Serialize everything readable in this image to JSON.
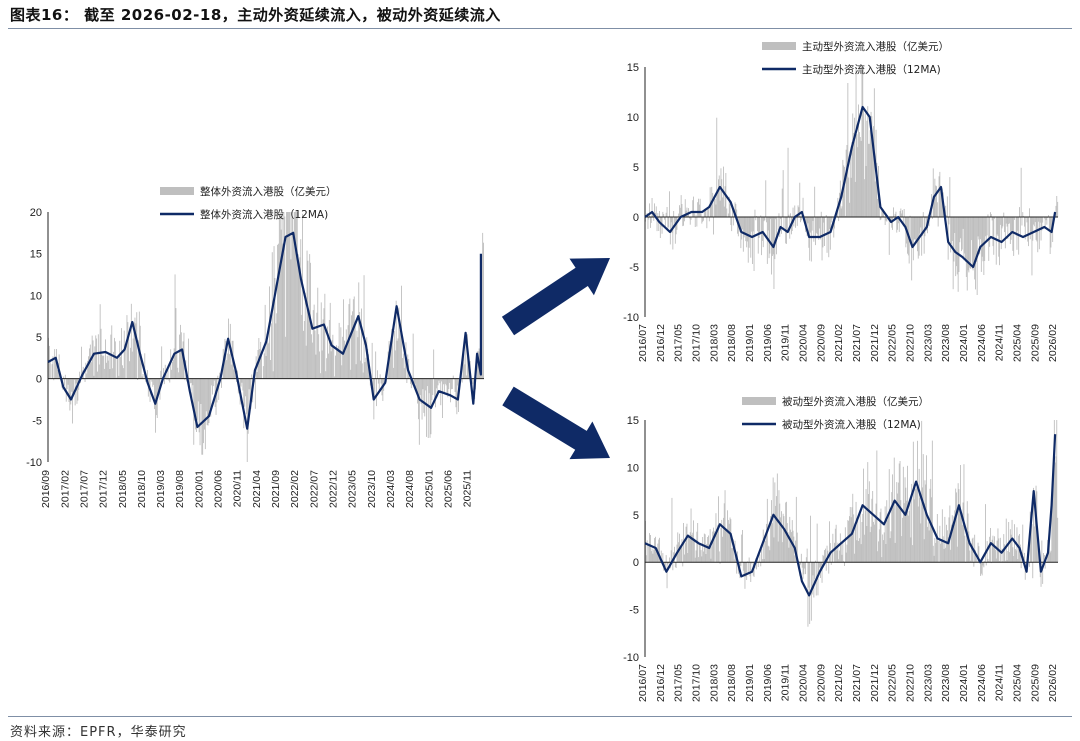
{
  "figure": {
    "title": "图表16： 截至 2026-02-18，主动外资延续流入，被动外资延续流入",
    "source": "资料来源：EPFR，华泰研究"
  },
  "colors": {
    "bar": "#bfbfbf",
    "line": "#0f2a66",
    "arrow": "#0f2a66",
    "zero": "#222222"
  },
  "chart_data": [
    {
      "type": "bar+line",
      "name": "total",
      "legend": [
        "整体外资流入港股（亿美元）",
        "整体外资流入港股（12MA)"
      ],
      "ylim": [
        -10,
        20
      ],
      "yticks": [
        -10,
        -5,
        0,
        5,
        10,
        15,
        20
      ],
      "xticks": [
        "2016/09",
        "2017/02",
        "2017/07",
        "2017/12",
        "2018/05",
        "2018/10",
        "2019/03",
        "2019/08",
        "2020/01",
        "2020/06",
        "2020/11",
        "2021/04",
        "2021/09",
        "2022/02",
        "2022/07",
        "2022/12",
        "2023/05",
        "2023/10",
        "2024/03",
        "2024/08",
        "2025/01",
        "2025/06",
        "2025/11"
      ],
      "x_range": [
        "2016/09",
        "2026/02"
      ],
      "ma_points": [
        [
          "2016/09",
          2
        ],
        [
          "2016/11",
          2.5
        ],
        [
          "2017/01",
          -1
        ],
        [
          "2017/03",
          -2.5
        ],
        [
          "2017/06",
          0.5
        ],
        [
          "2017/09",
          3
        ],
        [
          "2017/12",
          3.2
        ],
        [
          "2018/03",
          2.5
        ],
        [
          "2018/05",
          3.5
        ],
        [
          "2018/07",
          6.8
        ],
        [
          "2018/09",
          3
        ],
        [
          "2018/11",
          -0.5
        ],
        [
          "2019/01",
          -3
        ],
        [
          "2019/03",
          0
        ],
        [
          "2019/06",
          3
        ],
        [
          "2019/08",
          3.5
        ],
        [
          "2019/10",
          -1.5
        ],
        [
          "2019/12",
          -5.8
        ],
        [
          "2020/03",
          -4.5
        ],
        [
          "2020/06",
          0
        ],
        [
          "2020/08",
          4.8
        ],
        [
          "2020/10",
          1
        ],
        [
          "2021/01",
          -6
        ],
        [
          "2021/03",
          1
        ],
        [
          "2021/06",
          4.5
        ],
        [
          "2021/09",
          12
        ],
        [
          "2021/11",
          17
        ],
        [
          "2022/01",
          17.5
        ],
        [
          "2022/03",
          12
        ],
        [
          "2022/06",
          6
        ],
        [
          "2022/09",
          6.5
        ],
        [
          "2022/11",
          4
        ],
        [
          "2023/02",
          3
        ],
        [
          "2023/06",
          7.5
        ],
        [
          "2023/08",
          4
        ],
        [
          "2023/10",
          -2.5
        ],
        [
          "2024/01",
          -0.5
        ],
        [
          "2024/04",
          8.7
        ],
        [
          "2024/07",
          1
        ],
        [
          "2024/10",
          -2.5
        ],
        [
          "2025/01",
          -3.5
        ],
        [
          "2025/03",
          -1.5
        ],
        [
          "2025/06",
          -2
        ],
        [
          "2025/08",
          -2.5
        ],
        [
          "2025/10",
          5.5
        ],
        [
          "2025/12",
          -3
        ],
        [
          "2026/01",
          3
        ],
        [
          "2026/02",
          0.5
        ],
        [
          "2026/02",
          15
        ]
      ]
    },
    {
      "type": "bar+line",
      "name": "active",
      "legend": [
        "主动型外资流入港股（亿美元）",
        "主动型外资流入港股（12MA)"
      ],
      "ylim": [
        -10,
        15
      ],
      "yticks": [
        -10,
        -5,
        0,
        5,
        10,
        15
      ],
      "xticks": [
        "2016/07",
        "2016/12",
        "2017/05",
        "2017/10",
        "2018/03",
        "2018/08",
        "2019/01",
        "2019/06",
        "2019/11",
        "2020/04",
        "2020/09",
        "2021/02",
        "2021/07",
        "2021/12",
        "2022/05",
        "2022/10",
        "2023/03",
        "2023/08",
        "2024/01",
        "2024/06",
        "2024/11",
        "2025/04",
        "2025/09",
        "2026/02"
      ],
      "x_range": [
        "2016/07",
        "2026/02"
      ],
      "ma_points": [
        [
          "2016/07",
          0
        ],
        [
          "2016/09",
          0.5
        ],
        [
          "2016/11",
          -0.5
        ],
        [
          "2017/02",
          -1.5
        ],
        [
          "2017/05",
          0
        ],
        [
          "2017/08",
          0.5
        ],
        [
          "2017/11",
          0.5
        ],
        [
          "2018/01",
          1
        ],
        [
          "2018/04",
          3
        ],
        [
          "2018/07",
          1.5
        ],
        [
          "2018/10",
          -1.5
        ],
        [
          "2019/01",
          -2
        ],
        [
          "2019/04",
          -1.5
        ],
        [
          "2019/07",
          -3
        ],
        [
          "2019/09",
          -1
        ],
        [
          "2019/11",
          -1.5
        ],
        [
          "2020/01",
          0
        ],
        [
          "2020/03",
          0.5
        ],
        [
          "2020/05",
          -2
        ],
        [
          "2020/08",
          -2
        ],
        [
          "2020/11",
          -1.5
        ],
        [
          "2021/02",
          2
        ],
        [
          "2021/05",
          7
        ],
        [
          "2021/08",
          11
        ],
        [
          "2021/10",
          10
        ],
        [
          "2022/01",
          1
        ],
        [
          "2022/04",
          -0.5
        ],
        [
          "2022/06",
          0
        ],
        [
          "2022/08",
          -1
        ],
        [
          "2022/10",
          -3
        ],
        [
          "2022/12",
          -2
        ],
        [
          "2023/02",
          -1
        ],
        [
          "2023/04",
          2
        ],
        [
          "2023/06",
          3
        ],
        [
          "2023/08",
          -2.5
        ],
        [
          "2023/10",
          -3.5
        ],
        [
          "2023/12",
          -4
        ],
        [
          "2024/03",
          -5
        ],
        [
          "2024/05",
          -3
        ],
        [
          "2024/08",
          -2
        ],
        [
          "2024/11",
          -2.5
        ],
        [
          "2025/02",
          -1.5
        ],
        [
          "2025/05",
          -2
        ],
        [
          "2025/08",
          -1.5
        ],
        [
          "2025/11",
          -1
        ],
        [
          "2026/01",
          -1.5
        ],
        [
          "2026/02",
          0.5
        ]
      ]
    },
    {
      "type": "bar+line",
      "name": "passive",
      "legend": [
        "被动型外资流入港股（亿美元）",
        "被动型外资流入港股（12MA)"
      ],
      "ylim": [
        -10,
        15
      ],
      "yticks": [
        -10,
        -5,
        0,
        5,
        10,
        15
      ],
      "xticks": [
        "2016/07",
        "2016/12",
        "2017/05",
        "2017/10",
        "2018/03",
        "2018/08",
        "2019/01",
        "2019/06",
        "2019/11",
        "2020/04",
        "2020/09",
        "2021/02",
        "2021/07",
        "2021/12",
        "2022/05",
        "2022/10",
        "2023/03",
        "2023/08",
        "2024/01",
        "2024/06",
        "2024/11",
        "2025/04",
        "2025/09",
        "2026/02"
      ],
      "x_range": [
        "2016/07",
        "2026/02"
      ],
      "ma_points": [
        [
          "2016/07",
          2
        ],
        [
          "2016/10",
          1.5
        ],
        [
          "2017/01",
          -1
        ],
        [
          "2017/04",
          1
        ],
        [
          "2017/07",
          2.8
        ],
        [
          "2017/10",
          2
        ],
        [
          "2018/01",
          1.5
        ],
        [
          "2018/04",
          4
        ],
        [
          "2018/07",
          3
        ],
        [
          "2018/10",
          -1.5
        ],
        [
          "2019/01",
          -1
        ],
        [
          "2019/04",
          2
        ],
        [
          "2019/07",
          5
        ],
        [
          "2019/10",
          3.5
        ],
        [
          "2020/01",
          1.5
        ],
        [
          "2020/03",
          -2
        ],
        [
          "2020/05",
          -3.5
        ],
        [
          "2020/08",
          -1
        ],
        [
          "2020/11",
          1
        ],
        [
          "2021/02",
          2
        ],
        [
          "2021/05",
          3
        ],
        [
          "2021/08",
          6
        ],
        [
          "2021/11",
          5
        ],
        [
          "2022/02",
          4
        ],
        [
          "2022/05",
          6.5
        ],
        [
          "2022/08",
          5
        ],
        [
          "2022/11",
          8.5
        ],
        [
          "2023/02",
          5
        ],
        [
          "2023/05",
          2.5
        ],
        [
          "2023/08",
          2
        ],
        [
          "2023/11",
          6
        ],
        [
          "2024/02",
          2
        ],
        [
          "2024/05",
          0
        ],
        [
          "2024/08",
          2
        ],
        [
          "2024/11",
          1
        ],
        [
          "2025/02",
          2.5
        ],
        [
          "2025/04",
          1.5
        ],
        [
          "2025/06",
          -1
        ],
        [
          "2025/08",
          7.5
        ],
        [
          "2025/10",
          -1
        ],
        [
          "2025/12",
          1
        ],
        [
          "2026/01",
          6
        ],
        [
          "2026/02",
          13.5
        ]
      ]
    }
  ]
}
